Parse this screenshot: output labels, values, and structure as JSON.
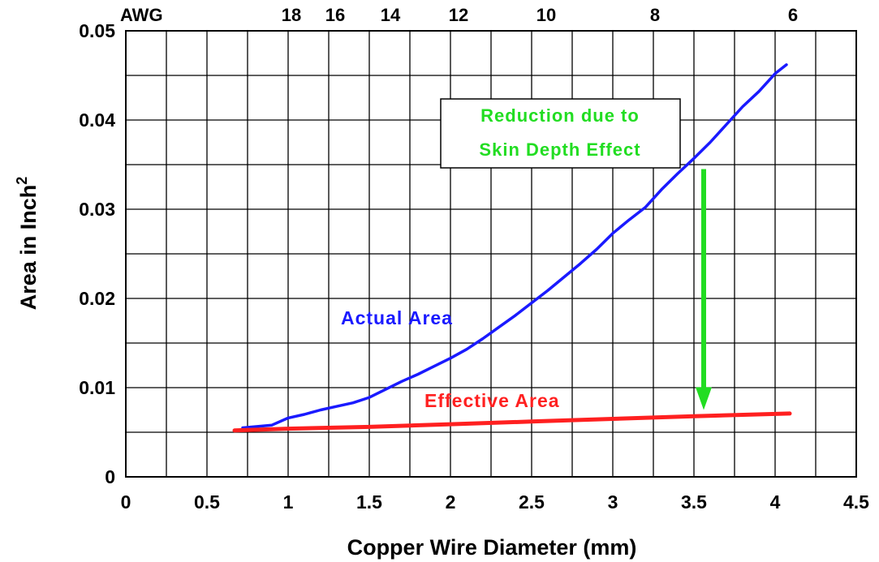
{
  "chart_data": {
    "type": "line",
    "xlabel": "Copper Wire Diameter (mm)",
    "ylabel": "Area in Inch",
    "ylabel_superscript": "2",
    "xlim": [
      0,
      4.5
    ],
    "ylim": [
      0,
      0.05
    ],
    "x_ticks": [
      "0",
      "0.5",
      "1",
      "1.5",
      "2",
      "2.5",
      "3",
      "3.5",
      "4",
      "4.5"
    ],
    "y_ticks": [
      "0",
      "0.01",
      "0.02",
      "0.03",
      "0.04",
      "0.05"
    ],
    "grid": true,
    "top_axis": {
      "label": "AWG",
      "ticks": [
        {
          "label": "18",
          "x": 1.02
        },
        {
          "label": "16",
          "x": 1.29
        },
        {
          "label": "14",
          "x": 1.63
        },
        {
          "label": "12",
          "x": 2.05
        },
        {
          "label": "10",
          "x": 2.59
        },
        {
          "label": "8",
          "x": 3.26
        },
        {
          "label": "6",
          "x": 4.11
        }
      ]
    },
    "series": [
      {
        "name": "Actual Area",
        "color": "#1a1aff",
        "x": [
          0.72,
          0.9,
          1.0,
          1.1,
          1.2,
          1.3,
          1.4,
          1.5,
          1.6,
          1.7,
          1.8,
          1.9,
          2.0,
          2.1,
          2.2,
          2.3,
          2.4,
          2.5,
          2.6,
          2.7,
          2.8,
          2.9,
          3.0,
          3.1,
          3.2,
          3.3,
          3.4,
          3.5,
          3.6,
          3.7,
          3.8,
          3.9,
          4.0,
          4.07
        ],
        "y": [
          0.0055,
          0.0058,
          0.0066,
          0.007,
          0.0075,
          0.0079,
          0.0083,
          0.0089,
          0.0098,
          0.0107,
          0.0115,
          0.0124,
          0.0133,
          0.0143,
          0.0155,
          0.0168,
          0.0181,
          0.0195,
          0.0209,
          0.0224,
          0.0239,
          0.0255,
          0.0273,
          0.0288,
          0.0302,
          0.0322,
          0.034,
          0.0357,
          0.0375,
          0.0395,
          0.0415,
          0.0432,
          0.0452,
          0.0462
        ]
      },
      {
        "name": "Effective Area",
        "color": "#ff2020",
        "x": [
          0.67,
          1.0,
          1.5,
          2.0,
          2.5,
          3.0,
          3.5,
          4.09
        ],
        "y": [
          0.0052,
          0.0054,
          0.0056,
          0.0059,
          0.0062,
          0.0065,
          0.0068,
          0.0071
        ]
      }
    ],
    "annotations": [
      {
        "text": "Actual Area",
        "color": "#1a1aff"
      },
      {
        "text": "Effective Area",
        "color": "#ff2020"
      },
      {
        "line1": "Reduction due to",
        "line2": "Skin Depth Effect",
        "color": "#22dd22"
      }
    ],
    "arrow": {
      "color": "#22dd22",
      "x": 3.56,
      "from_y": 0.0345,
      "to_y": 0.0075
    }
  }
}
